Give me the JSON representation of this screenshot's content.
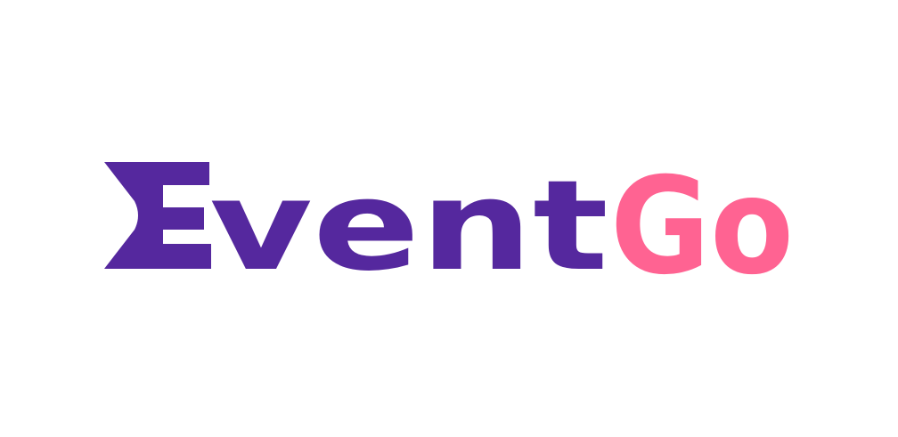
{
  "logo": {
    "word_part_1": "Event",
    "word_part_2": "Go",
    "color_primary": "#55289E",
    "color_accent": "#FF6392"
  }
}
